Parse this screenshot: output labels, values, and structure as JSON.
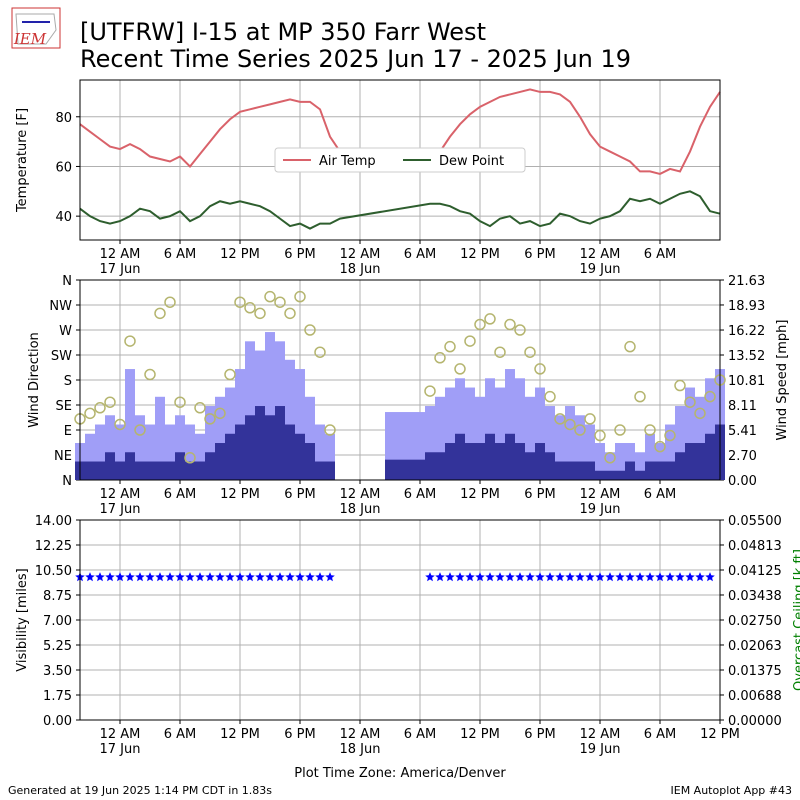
{
  "header": {
    "logo": "IEM",
    "title": [
      "[UTFRW] I-15 at MP 350 Farr West",
      "Recent Time Series 2025 Jun 17 - 2025 Jun 19"
    ]
  },
  "chart_data": [
    {
      "type": "line",
      "ylabel": "Temperature [F]",
      "grid": true,
      "legend": "center",
      "xlim": [
        -4,
        60
      ],
      "xticks": [
        {
          "value": 0,
          "label": "12 AM\n17 Jun"
        },
        {
          "value": 6,
          "label": "6 AM"
        },
        {
          "value": 12,
          "label": "12 PM"
        },
        {
          "value": 18,
          "label": "6 PM"
        },
        {
          "value": 24,
          "label": "12 AM\n18 Jun"
        },
        {
          "value": 30,
          "label": "6 AM"
        },
        {
          "value": 36,
          "label": "12 PM"
        },
        {
          "value": 42,
          "label": "6 PM"
        },
        {
          "value": 48,
          "label": "12 AM\n19 Jun"
        },
        {
          "value": 54,
          "label": "6 AM"
        }
      ],
      "ylim": [
        30.4,
        94.8
      ],
      "yticks": [
        40,
        60,
        80
      ],
      "x": [
        -4,
        -3,
        -2,
        -1,
        0,
        1,
        2,
        3,
        4,
        5,
        6,
        7,
        8,
        9,
        10,
        11,
        12,
        13,
        14,
        15,
        16,
        17,
        18,
        19,
        20,
        21,
        22,
        31,
        32,
        33,
        34,
        35,
        36,
        37,
        38,
        39,
        40,
        41,
        42,
        43,
        44,
        45,
        46,
        47,
        48,
        49,
        50,
        51,
        52,
        53,
        54,
        55,
        56,
        57,
        58,
        59,
        60
      ],
      "series": [
        {
          "name": "Air Temp",
          "color": "#d9626a",
          "values": [
            77,
            74,
            71,
            68,
            67,
            69,
            67,
            64,
            63,
            62,
            64,
            60,
            65,
            70,
            75,
            79,
            82,
            83,
            84,
            85,
            86,
            87,
            86,
            86,
            83,
            72,
            66,
            62,
            66,
            72,
            77,
            81,
            84,
            86,
            88,
            89,
            90,
            91,
            90,
            90,
            89,
            86,
            80,
            73,
            68,
            66,
            64,
            62,
            58,
            58,
            57,
            59,
            58,
            66,
            76,
            84,
            90
          ]
        },
        {
          "name": "Dew Point",
          "color": "#2e5e2e",
          "values": [
            43,
            40,
            38,
            37,
            38,
            40,
            43,
            42,
            39,
            40,
            42,
            38,
            40,
            44,
            46,
            45,
            46,
            45,
            44,
            42,
            39,
            36,
            37,
            35,
            37,
            37,
            39,
            45,
            45,
            44,
            42,
            41,
            38,
            36,
            39,
            40,
            37,
            38,
            36,
            37,
            41,
            40,
            38,
            37,
            39,
            40,
            42,
            47,
            46,
            47,
            45,
            47,
            49,
            50,
            48,
            42,
            41
          ]
        }
      ]
    },
    {
      "type": "combo",
      "ylabel": "Wind Direction",
      "y2label": "Wind Speed [mph]",
      "grid": true,
      "xlim": [
        -4,
        60
      ],
      "xticks": [
        {
          "value": 0,
          "label": "12 AM\n17 Jun"
        },
        {
          "value": 6,
          "label": "6 AM"
        },
        {
          "value": 12,
          "label": "12 PM"
        },
        {
          "value": 18,
          "label": "6 PM"
        },
        {
          "value": 24,
          "label": "12 AM\n18 Jun"
        },
        {
          "value": 30,
          "label": "6 AM"
        },
        {
          "value": 36,
          "label": "12 PM"
        },
        {
          "value": 42,
          "label": "6 PM"
        },
        {
          "value": 48,
          "label": "12 AM\n19 Jun"
        },
        {
          "value": 54,
          "label": "6 AM"
        }
      ],
      "ylim": [
        0,
        360
      ],
      "yticks": [
        {
          "value": 0,
          "label": "N"
        },
        {
          "value": 45,
          "label": "NE"
        },
        {
          "value": 90,
          "label": "E"
        },
        {
          "value": 135,
          "label": "SE"
        },
        {
          "value": 180,
          "label": "S"
        },
        {
          "value": 225,
          "label": "SW"
        },
        {
          "value": 270,
          "label": "W"
        },
        {
          "value": 315,
          "label": "NW"
        },
        {
          "value": 360,
          "label": "N"
        }
      ],
      "y2lim": [
        0,
        21.63
      ],
      "y2ticks": [
        {
          "value": 0,
          "label": "0.00"
        },
        {
          "value": 2.7,
          "label": "2.70"
        },
        {
          "value": 5.41,
          "label": "5.41"
        },
        {
          "value": 8.11,
          "label": "8.11"
        },
        {
          "value": 10.81,
          "label": "10.81"
        },
        {
          "value": 13.52,
          "label": "13.52"
        },
        {
          "value": 16.22,
          "label": "16.22"
        },
        {
          "value": 18.93,
          "label": "18.93"
        },
        {
          "value": 21.63,
          "label": "21.63"
        }
      ],
      "x": [
        -4,
        -3,
        -2,
        -1,
        0,
        1,
        2,
        3,
        4,
        5,
        6,
        7,
        8,
        9,
        10,
        11,
        12,
        13,
        14,
        15,
        16,
        17,
        18,
        19,
        20,
        21,
        22,
        23,
        24,
        25,
        26,
        27,
        28,
        29,
        30,
        31,
        32,
        33,
        34,
        35,
        36,
        37,
        38,
        39,
        40,
        41,
        42,
        43,
        44,
        45,
        46,
        47,
        48,
        49,
        50,
        51,
        52,
        53,
        54,
        55,
        56,
        57,
        58,
        59,
        60
      ],
      "series": [
        {
          "kind": "bar",
          "axis": "y2",
          "color": "#a09ef7",
          "values": [
            4,
            5,
            6,
            7,
            6,
            12,
            7,
            6,
            9,
            6,
            7,
            6,
            5,
            8,
            9,
            10,
            12,
            15,
            14,
            16,
            15,
            13,
            12,
            9,
            6,
            5,
            null,
            null,
            null,
            null,
            null,
            7.35,
            7.35,
            7.35,
            7.35,
            8,
            9,
            10,
            11,
            10,
            9,
            11,
            10,
            12,
            11,
            9,
            10,
            8,
            7,
            8,
            7,
            6,
            4,
            3,
            4,
            4,
            3,
            5,
            4,
            6,
            8,
            10,
            9,
            11,
            12
          ]
        },
        {
          "kind": "bar",
          "axis": "y2",
          "color": "#33339a",
          "values": [
            2,
            2,
            2,
            3,
            2,
            3,
            2,
            2,
            2,
            2,
            3,
            2,
            2,
            3,
            4,
            5,
            6,
            7,
            8,
            7,
            8,
            6,
            5,
            4,
            2,
            2,
            null,
            null,
            null,
            null,
            null,
            2.2,
            2.2,
            2.2,
            2.2,
            3,
            3,
            4,
            5,
            4,
            4,
            5,
            4,
            5,
            4,
            3,
            4,
            3,
            2,
            2,
            2,
            2,
            1,
            1,
            1,
            2,
            1,
            2,
            2,
            2,
            3,
            4,
            4,
            5,
            6
          ]
        },
        {
          "kind": "circle",
          "color": "#b5b56f",
          "values": [
            110,
            120,
            130,
            140,
            100,
            250,
            90,
            190,
            300,
            320,
            140,
            40,
            130,
            110,
            120,
            190,
            320,
            310,
            300,
            330,
            320,
            300,
            330,
            270,
            230,
            90,
            null,
            null,
            null,
            null,
            null,
            null,
            null,
            null,
            null,
            160,
            220,
            240,
            200,
            250,
            280,
            290,
            230,
            280,
            270,
            230,
            200,
            150,
            110,
            100,
            90,
            110,
            80,
            40,
            90,
            240,
            150,
            90,
            60,
            80,
            170,
            140,
            120,
            150,
            180
          ]
        }
      ]
    },
    {
      "type": "scatter",
      "ylabel": "Visibility [miles]",
      "y2label": "Overcast Ceiling [k ft]",
      "y2label_color": "green",
      "xlabel": "Plot Time Zone: America/Denver",
      "grid": true,
      "xlim": [
        -4,
        60
      ],
      "xticks": [
        {
          "value": 0,
          "label": "12 AM\n17 Jun"
        },
        {
          "value": 6,
          "label": "6 AM"
        },
        {
          "value": 12,
          "label": "12 PM"
        },
        {
          "value": 18,
          "label": "6 PM"
        },
        {
          "value": 24,
          "label": "12 AM\n18 Jun"
        },
        {
          "value": 30,
          "label": "6 AM"
        },
        {
          "value": 36,
          "label": "12 PM"
        },
        {
          "value": 42,
          "label": "6 PM"
        },
        {
          "value": 48,
          "label": "12 AM\n19 Jun"
        },
        {
          "value": 54,
          "label": "6 AM"
        },
        {
          "value": 60,
          "label": "12 PM"
        }
      ],
      "ylim": [
        0,
        14
      ],
      "yticks": [
        {
          "value": 0,
          "label": "0.00"
        },
        {
          "value": 1.75,
          "label": "1.75"
        },
        {
          "value": 3.5,
          "label": "3.50"
        },
        {
          "value": 5.25,
          "label": "5.25"
        },
        {
          "value": 7,
          "label": "7.00"
        },
        {
          "value": 8.75,
          "label": "8.75"
        },
        {
          "value": 10.5,
          "label": "10.50"
        },
        {
          "value": 12.25,
          "label": "12.25"
        },
        {
          "value": 14,
          "label": "14.00"
        }
      ],
      "y2lim": [
        0,
        0.055
      ],
      "y2ticks": [
        {
          "value": 0,
          "label": "0.00000"
        },
        {
          "value": 0.00688,
          "label": "0.00688"
        },
        {
          "value": 0.01375,
          "label": "0.01375"
        },
        {
          "value": 0.02063,
          "label": "0.02063"
        },
        {
          "value": 0.0275,
          "label": "0.02750"
        },
        {
          "value": 0.03438,
          "label": "0.03438"
        },
        {
          "value": 0.04125,
          "label": "0.04125"
        },
        {
          "value": 0.04813,
          "label": "0.04813"
        },
        {
          "value": 0.055,
          "label": "0.05500"
        }
      ],
      "x": [
        -4,
        -3,
        -2,
        -1,
        0,
        1,
        2,
        3,
        4,
        5,
        6,
        7,
        8,
        9,
        10,
        11,
        12,
        13,
        14,
        15,
        16,
        17,
        18,
        19,
        20,
        21,
        22,
        23,
        24,
        25,
        26,
        27,
        28,
        29,
        30,
        31,
        32,
        33,
        34,
        35,
        36,
        37,
        38,
        39,
        40,
        41,
        42,
        43,
        44,
        45,
        46,
        47,
        48,
        49,
        50,
        51,
        52,
        53,
        54,
        55,
        56,
        57,
        58,
        59,
        60
      ],
      "series": [
        {
          "kind": "star",
          "color": "#0000ff",
          "values": [
            10,
            10,
            10,
            10,
            10,
            10,
            10,
            10,
            10,
            10,
            10,
            10,
            10,
            10,
            10,
            10,
            10,
            10,
            10,
            10,
            10,
            10,
            10,
            10,
            10,
            10,
            null,
            null,
            null,
            null,
            null,
            null,
            null,
            null,
            null,
            10,
            10,
            10,
            10,
            10,
            10,
            10,
            10,
            10,
            10,
            10,
            10,
            10,
            10,
            10,
            10,
            10,
            10,
            10,
            10,
            10,
            10,
            10,
            10,
            10,
            10,
            10,
            10,
            10,
            null
          ]
        }
      ]
    }
  ],
  "footer": {
    "generated": "Generated at 19 Jun 2025 1:14 PM CDT in 1.83s",
    "app": "IEM Autoplot App #43"
  }
}
